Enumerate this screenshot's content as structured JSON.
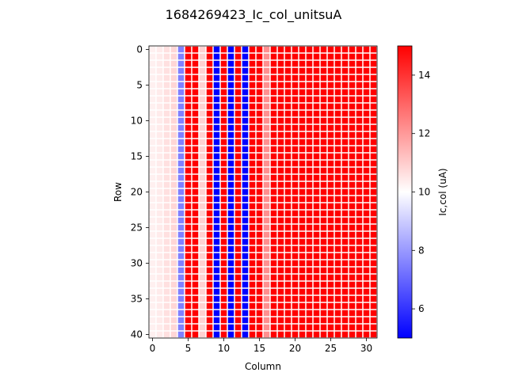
{
  "chart_data": {
    "type": "heatmap",
    "title": "1684269423_Ic_col_unitsuA",
    "xlabel": "Column",
    "ylabel": "Row",
    "colorbar_label": "Ic,col (uA)",
    "n_rows": 41,
    "n_cols": 32,
    "xlim": [
      -0.5,
      31.5
    ],
    "ylim": [
      40.5,
      -0.5
    ],
    "x_ticks": [
      0,
      5,
      10,
      15,
      20,
      25,
      30
    ],
    "y_ticks": [
      0,
      5,
      10,
      15,
      20,
      25,
      30,
      35,
      40
    ],
    "colorbar_range": [
      5,
      15
    ],
    "colorbar_ticks": [
      6,
      8,
      10,
      12,
      14
    ],
    "colormap": "bwr",
    "colormap_colors": [
      "#0000ff",
      "#ffffff",
      "#ff0000"
    ],
    "column_values": [
      10.3,
      10.4,
      10.6,
      10.8,
      7.5,
      15,
      15,
      10.9,
      15,
      5,
      15,
      5,
      15,
      5,
      15,
      15,
      12.2,
      15,
      15,
      15,
      15,
      15,
      15,
      15,
      15,
      15,
      15,
      15,
      15,
      15,
      15,
      15
    ],
    "cell_gaps": true
  }
}
